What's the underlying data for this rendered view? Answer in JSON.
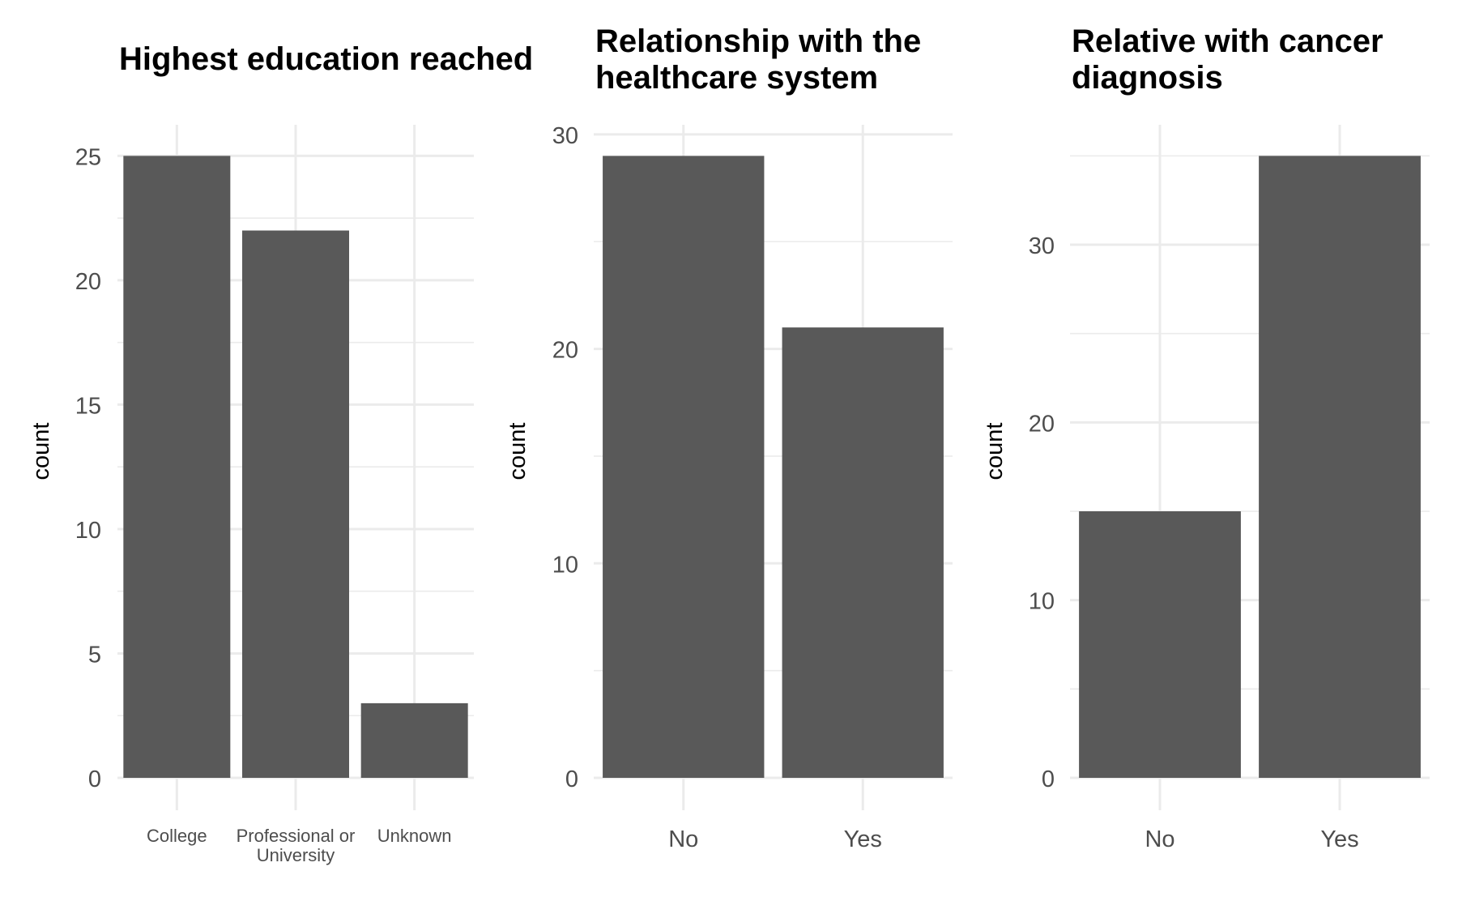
{
  "chart_data": [
    {
      "type": "bar",
      "title": [
        "Highest education reached"
      ],
      "xlabel": "",
      "ylabel": "count",
      "categories": [
        [
          "College"
        ],
        [
          "Professional or",
          "University"
        ],
        [
          "Unknown"
        ]
      ],
      "values": [
        25,
        22,
        3
      ],
      "ylim": [
        0,
        26.25
      ],
      "yticks": [
        0,
        5,
        10,
        15,
        20,
        25
      ],
      "bar_color": "#595959",
      "grid": true
    },
    {
      "type": "bar",
      "title": [
        "Relationship with the",
        "healthcare system"
      ],
      "xlabel": "",
      "ylabel": "count",
      "categories": [
        [
          "No"
        ],
        [
          "Yes"
        ]
      ],
      "values": [
        29,
        21
      ],
      "ylim": [
        0,
        30.45
      ],
      "yticks": [
        0,
        10,
        20,
        30
      ],
      "bar_color": "#595959",
      "grid": true
    },
    {
      "type": "bar",
      "title": [
        "Relative with cancer",
        "diagnosis"
      ],
      "xlabel": "",
      "ylabel": "count",
      "categories": [
        [
          "No"
        ],
        [
          "Yes"
        ]
      ],
      "values": [
        15,
        35
      ],
      "ylim": [
        0,
        36.75
      ],
      "yticks": [
        0,
        10,
        20,
        30
      ],
      "bar_color": "#595959",
      "grid": true
    }
  ],
  "colors": {
    "grid": "#ebebeb",
    "tick_text": "#4d4d4d",
    "title_text": "#000000"
  }
}
